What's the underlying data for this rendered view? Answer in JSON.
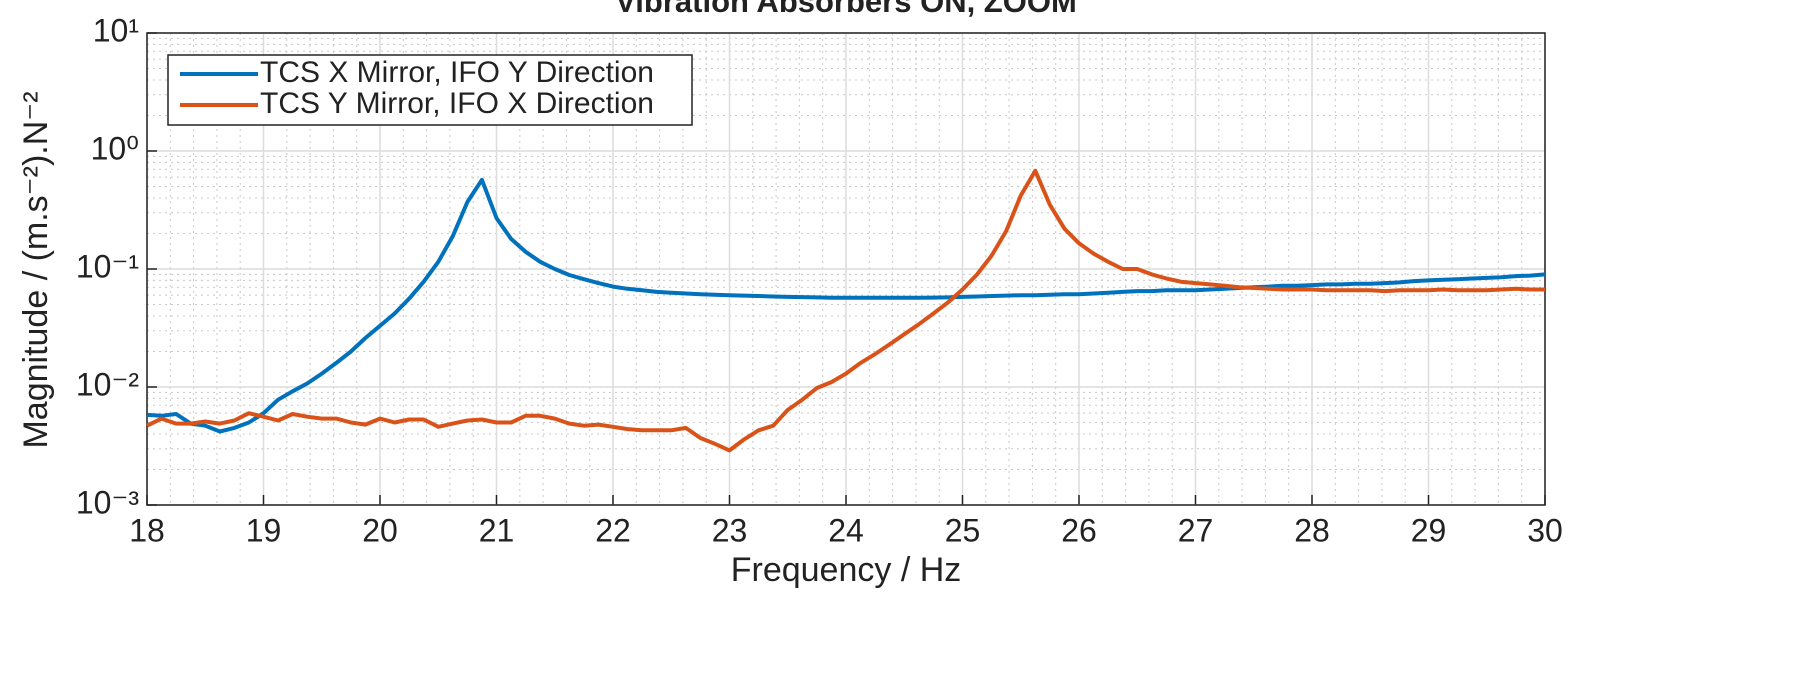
{
  "chart_data": {
    "type": "line",
    "title": "Vibration Absorbers ON, ZOOM",
    "xlabel": "Frequency / Hz",
    "ylabel": "Magnitude / (m.s⁻²).N⁻²",
    "xlim": [
      18,
      30
    ],
    "xticks": [
      18,
      19,
      20,
      21,
      22,
      23,
      24,
      25,
      26,
      27,
      28,
      29,
      30
    ],
    "ylim": [
      0.001,
      10
    ],
    "ylog": true,
    "yticks": [
      {
        "value": 0.001,
        "label": "10⁻³"
      },
      {
        "value": 0.01,
        "label": "10⁻²"
      },
      {
        "value": 0.1,
        "label": "10⁻¹"
      },
      {
        "value": 1,
        "label": "10⁰"
      },
      {
        "value": 10,
        "label": "10¹"
      }
    ],
    "grid": true,
    "minor_grid": true,
    "legend": "upper left",
    "x": [
      18,
      18.125,
      18.25,
      18.375,
      18.5,
      18.625,
      18.75,
      18.875,
      19,
      19.125,
      19.25,
      19.375,
      19.5,
      19.625,
      19.75,
      19.875,
      20,
      20.125,
      20.25,
      20.375,
      20.5,
      20.625,
      20.75,
      20.875,
      21,
      21.125,
      21.25,
      21.375,
      21.5,
      21.625,
      21.75,
      21.875,
      22,
      22.125,
      22.25,
      22.375,
      22.5,
      22.625,
      22.75,
      22.875,
      23,
      23.125,
      23.25,
      23.375,
      23.5,
      23.625,
      23.75,
      23.875,
      24,
      24.125,
      24.25,
      24.375,
      24.5,
      24.625,
      24.75,
      24.875,
      25,
      25.125,
      25.25,
      25.375,
      25.5,
      25.625,
      25.75,
      25.875,
      26,
      26.125,
      26.25,
      26.375,
      26.5,
      26.625,
      26.75,
      26.875,
      27,
      27.125,
      27.25,
      27.375,
      27.5,
      27.625,
      27.75,
      27.875,
      28,
      28.125,
      28.25,
      28.375,
      28.5,
      28.625,
      28.75,
      28.875,
      29,
      29.125,
      29.25,
      29.375,
      29.5,
      29.625,
      29.75,
      29.875,
      30
    ],
    "series": [
      {
        "name": "TCS X Mirror, IFO Y Direction",
        "color": "#0072bd",
        "values": [
          0.0058,
          0.0057,
          0.0059,
          0.0049,
          0.0047,
          0.0042,
          0.0045,
          0.005,
          0.006,
          0.0078,
          0.0092,
          0.0107,
          0.013,
          0.016,
          0.02,
          0.026,
          0.033,
          0.042,
          0.056,
          0.078,
          0.115,
          0.19,
          0.37,
          0.57,
          0.27,
          0.18,
          0.14,
          0.115,
          0.1,
          0.089,
          0.082,
          0.076,
          0.071,
          0.068,
          0.066,
          0.064,
          0.063,
          0.062,
          0.061,
          0.0605,
          0.06,
          0.0595,
          0.059,
          0.0585,
          0.058,
          0.0578,
          0.0575,
          0.057,
          0.057,
          0.057,
          0.057,
          0.057,
          0.057,
          0.057,
          0.0572,
          0.0575,
          0.058,
          0.0585,
          0.059,
          0.0595,
          0.06,
          0.06,
          0.0605,
          0.061,
          0.061,
          0.062,
          0.063,
          0.064,
          0.065,
          0.065,
          0.066,
          0.066,
          0.066,
          0.067,
          0.068,
          0.069,
          0.07,
          0.071,
          0.072,
          0.072,
          0.073,
          0.074,
          0.074,
          0.075,
          0.075,
          0.076,
          0.077,
          0.079,
          0.08,
          0.081,
          0.082,
          0.083,
          0.084,
          0.085,
          0.087,
          0.088,
          0.09
        ]
      },
      {
        "name": "TCS Y Mirror, IFO X Direction",
        "color": "#d95319",
        "values": [
          0.0047,
          0.0054,
          0.0049,
          0.0049,
          0.0051,
          0.0049,
          0.0052,
          0.006,
          0.0056,
          0.0052,
          0.0059,
          0.0056,
          0.0054,
          0.0054,
          0.005,
          0.0048,
          0.0054,
          0.005,
          0.0053,
          0.0053,
          0.0046,
          0.0049,
          0.0052,
          0.0053,
          0.005,
          0.005,
          0.0057,
          0.0057,
          0.0054,
          0.0049,
          0.0047,
          0.0048,
          0.0046,
          0.0044,
          0.0043,
          0.0043,
          0.0043,
          0.0045,
          0.0037,
          0.0033,
          0.0029,
          0.0036,
          0.0043,
          0.0047,
          0.0064,
          0.0078,
          0.0098,
          0.011,
          0.013,
          0.016,
          0.019,
          0.023,
          0.028,
          0.034,
          0.042,
          0.052,
          0.067,
          0.09,
          0.13,
          0.21,
          0.42,
          0.68,
          0.35,
          0.22,
          0.165,
          0.135,
          0.115,
          0.1,
          0.1,
          0.09,
          0.083,
          0.078,
          0.076,
          0.074,
          0.072,
          0.07,
          0.069,
          0.068,
          0.067,
          0.067,
          0.067,
          0.066,
          0.066,
          0.066,
          0.066,
          0.065,
          0.066,
          0.066,
          0.066,
          0.067,
          0.066,
          0.066,
          0.066,
          0.067,
          0.068,
          0.067,
          0.067
        ]
      }
    ]
  }
}
